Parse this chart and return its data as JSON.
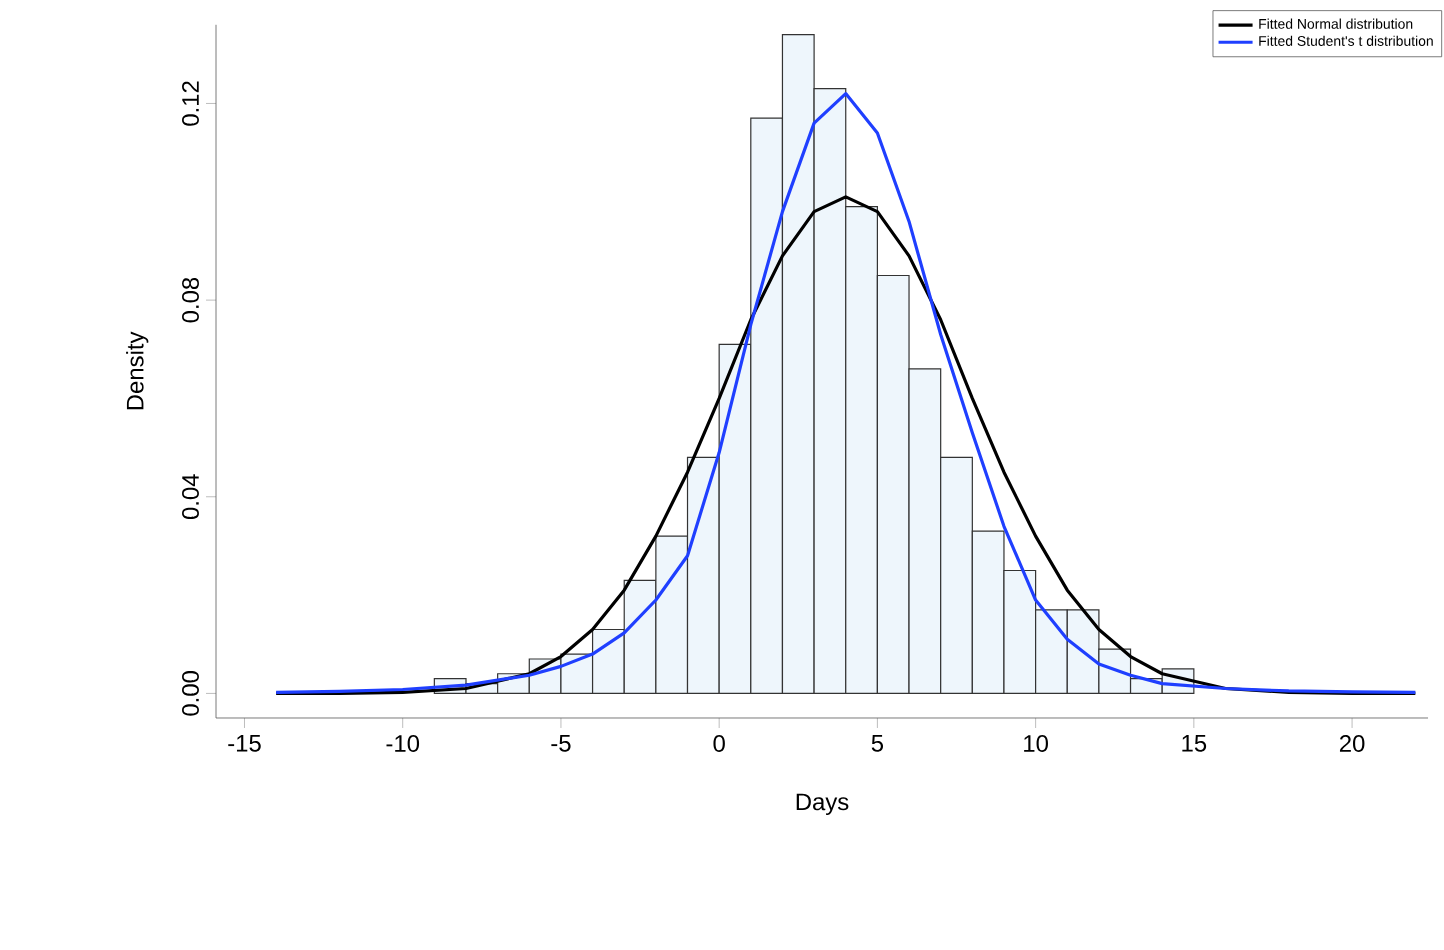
{
  "chart_data": {
    "type": "histogram",
    "xlabel": "Days",
    "ylabel": "Density",
    "color": "#eef6fc",
    "bins": [
      -9,
      -8,
      -7,
      -6,
      -5,
      -4,
      -3,
      -2,
      -1,
      0,
      1,
      2,
      3,
      4,
      5,
      6,
      7,
      8,
      9,
      10,
      11,
      12,
      13,
      14,
      15
    ],
    "values": [
      0.003,
      0.002,
      0.004,
      0.007,
      0.008,
      0.013,
      0.023,
      0.032,
      0.048,
      0.071,
      0.117,
      0.134,
      0.123,
      0.099,
      0.085,
      0.066,
      0.048,
      0.033,
      0.025,
      0.017,
      0.017,
      0.009,
      0.003,
      0.005
    ],
    "series": [
      {
        "name": "Fitted Normal distribution",
        "type": "line",
        "color": "#000000",
        "x": [
          -14,
          -12,
          -10,
          -8,
          -6,
          -5,
          -4,
          -3,
          -2,
          -1,
          0,
          1,
          2,
          3,
          4,
          5,
          6,
          7,
          8,
          9,
          10,
          11,
          12,
          13,
          14,
          16,
          18,
          20,
          22
        ],
        "values": [
          0,
          0,
          0.0002,
          0.001,
          0.004,
          0.0075,
          0.013,
          0.021,
          0.032,
          0.045,
          0.06,
          0.076,
          0.089,
          0.098,
          0.101,
          0.098,
          0.089,
          0.076,
          0.06,
          0.045,
          0.032,
          0.021,
          0.013,
          0.0075,
          0.004,
          0.001,
          0.0002,
          0,
          0
        ]
      },
      {
        "name": "Fitted Student's t distribution",
        "type": "line",
        "color": "#1f3fff",
        "x": [
          -14,
          -12,
          -10,
          -8,
          -6,
          -5,
          -4,
          -3,
          -2,
          -1,
          0,
          1,
          2,
          3,
          4,
          5,
          6,
          7,
          8,
          9,
          10,
          11,
          12,
          13,
          14,
          16,
          18,
          20,
          22
        ],
        "values": [
          0.0002,
          0.0004,
          0.0008,
          0.0017,
          0.0037,
          0.0055,
          0.008,
          0.0123,
          0.019,
          0.028,
          0.049,
          0.075,
          0.098,
          0.116,
          0.122,
          0.114,
          0.096,
          0.073,
          0.053,
          0.034,
          0.019,
          0.011,
          0.006,
          0.0037,
          0.002,
          0.001,
          0.0005,
          0.0003,
          0.0002
        ]
      }
    ],
    "xlim": [
      -15.9,
      22.4
    ],
    "ylim": [
      -0.005,
      0.136
    ],
    "xticks": [
      -15,
      -10,
      -5,
      0,
      5,
      10,
      15,
      20
    ],
    "yticks": [
      {
        "value": 0,
        "label": "0.00"
      },
      {
        "value": 0.04,
        "label": "0.04"
      },
      {
        "value": 0.08,
        "label": "0.08"
      },
      {
        "value": 0.12,
        "label": "0.12"
      }
    ],
    "legend": "top right",
    "grid": false,
    "marker": "none",
    "line_style": "solid"
  }
}
